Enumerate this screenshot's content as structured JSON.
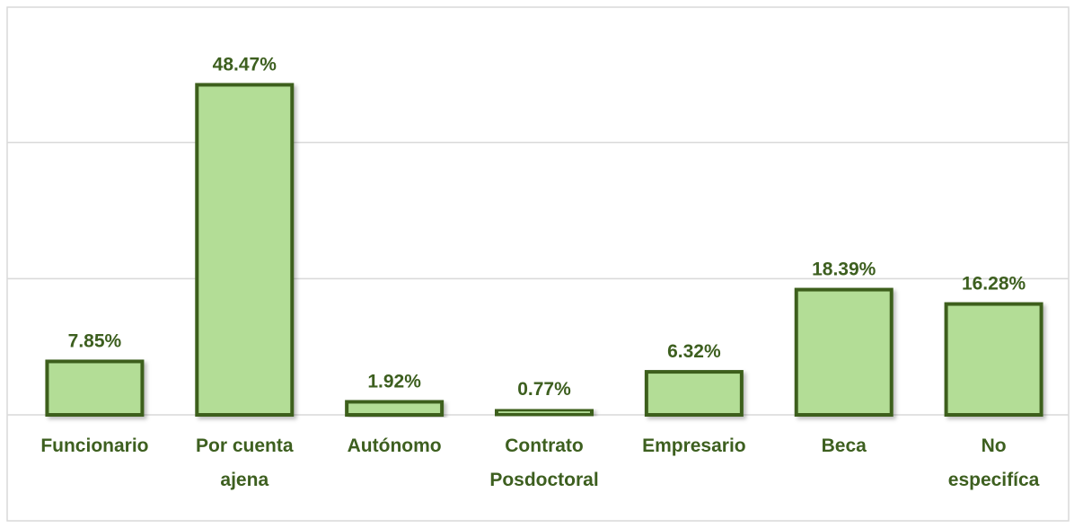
{
  "chart_data": {
    "type": "bar",
    "categories": [
      "Funcionario",
      "Por cuenta\najena",
      "Autónomo",
      "Contrato\nPosdoctoral",
      "Empresario",
      "Beca",
      "No\nespecifíca"
    ],
    "values": [
      7.85,
      48.47,
      1.92,
      0.77,
      6.32,
      18.39,
      16.28
    ],
    "value_labels": [
      "7.85%",
      "48.47%",
      "1.92%",
      "0.77%",
      "6.32%",
      "18.39%",
      "16.28%"
    ],
    "color": "#b3dd96",
    "ylim": [
      0,
      60
    ],
    "yticks": [
      0,
      20,
      40
    ],
    "grid": true
  }
}
